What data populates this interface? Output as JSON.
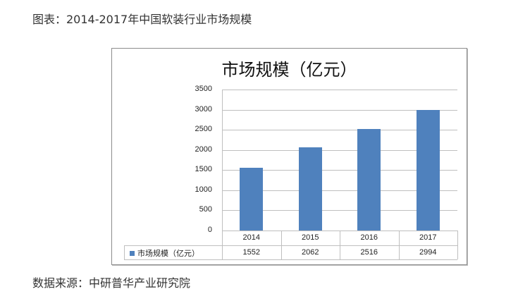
{
  "caption_top": "图表：2014-2017年中国软装行业市场规模",
  "caption_bottom": "数据来源：中研普华产业研究院",
  "colors": {
    "bar": "#4f81bd",
    "grid": "#bfbfbf",
    "frame": "#8c8c8c"
  },
  "chart_data": {
    "type": "bar",
    "title": "市场规模（亿元）",
    "categories": [
      "2014",
      "2015",
      "2016",
      "2017"
    ],
    "series": [
      {
        "name": "市场规模（亿元）",
        "values": [
          1552,
          2062,
          2516,
          2994
        ]
      }
    ],
    "values": [
      1552,
      2062,
      2516,
      2994
    ],
    "xlabel": "",
    "ylabel": "",
    "ylim": [
      0,
      3500
    ],
    "yticks": [
      "0",
      "500",
      "1000",
      "1500",
      "2000",
      "2500",
      "3000",
      "3500"
    ],
    "grid": true,
    "legend_position": "data-table",
    "data_table": true
  }
}
